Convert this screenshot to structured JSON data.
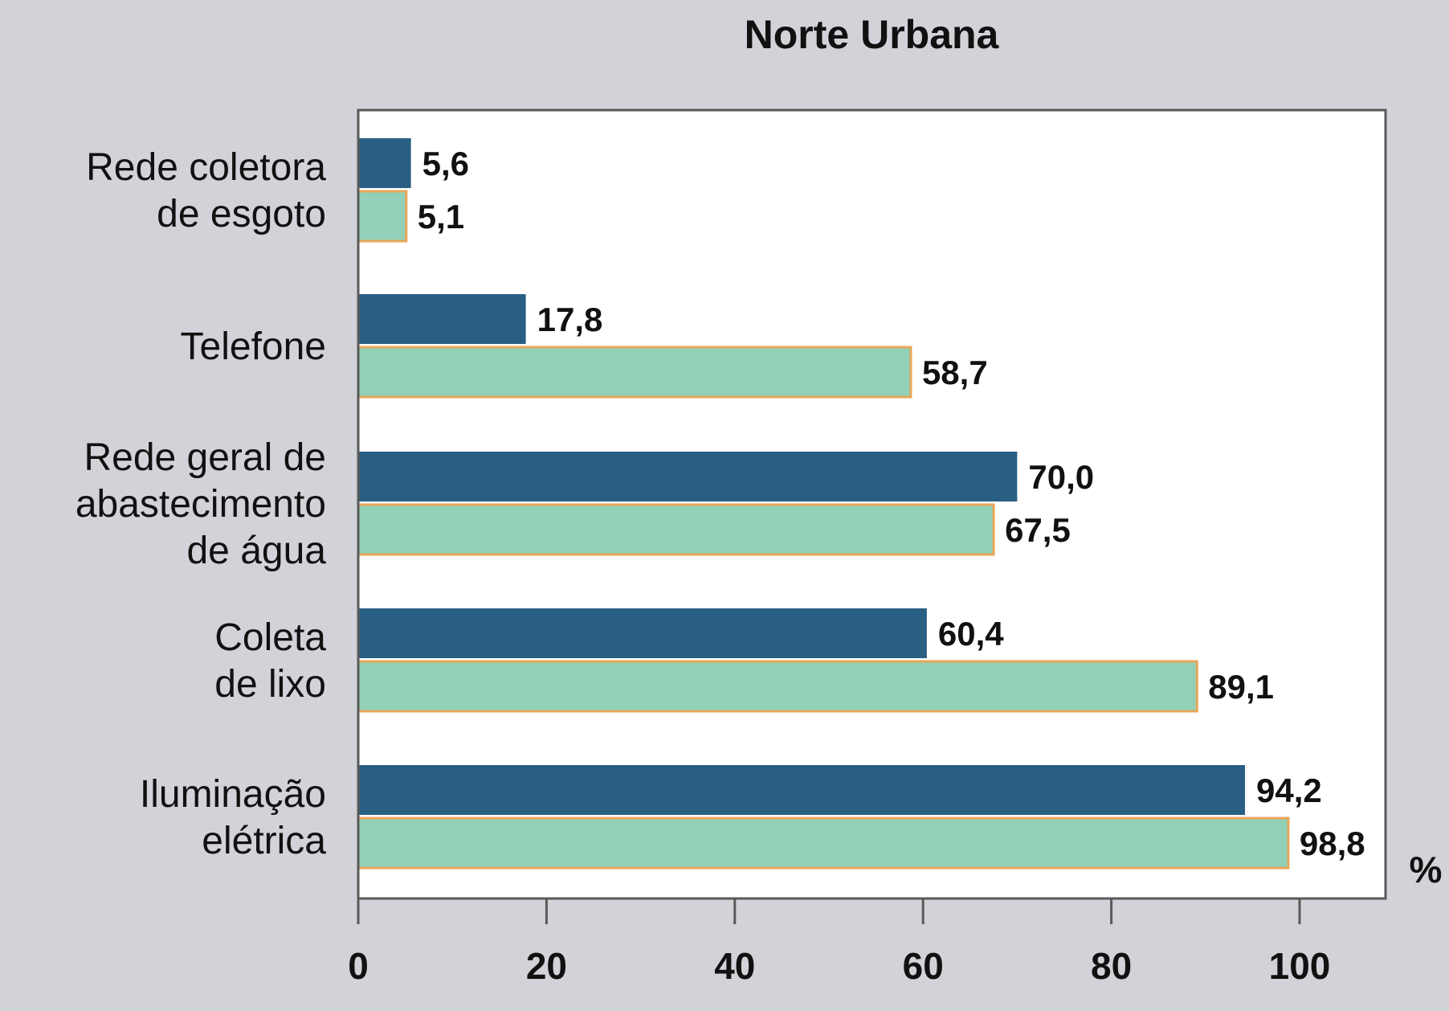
{
  "chart_data": {
    "type": "bar",
    "orientation": "horizontal",
    "title": "Norte Urbana",
    "categories": [
      [
        "Rede coletora",
        "de esgoto"
      ],
      [
        "Telefone"
      ],
      [
        "Rede geral de",
        "abastecimento",
        "de água"
      ],
      [
        "Coleta",
        "de lixo"
      ],
      [
        "Iluminação",
        "elétrica"
      ]
    ],
    "series": [
      {
        "values": [
          5.6,
          17.8,
          70.0,
          60.4,
          94.2
        ],
        "labels": [
          "5,6",
          "17,8",
          "70,0",
          "60,4",
          "94,2"
        ],
        "color": "#295f83"
      },
      {
        "values": [
          5.1,
          58.7,
          67.5,
          89.1,
          98.8
        ],
        "labels": [
          "5,1",
          "58,7",
          "67,5",
          "89,1",
          "98,8"
        ],
        "color": "#92d0b7",
        "edge_color": "#e8a65a"
      }
    ],
    "x_ticks": [
      "0",
      "20",
      "40",
      "60",
      "80",
      "100"
    ],
    "xlim": [
      0,
      109
    ],
    "unit": "%",
    "grid": false,
    "legend": "none"
  },
  "colors": {
    "background": "#d2d3d8",
    "plot_background": "#ffffff",
    "frame": "#5a5a5a"
  }
}
